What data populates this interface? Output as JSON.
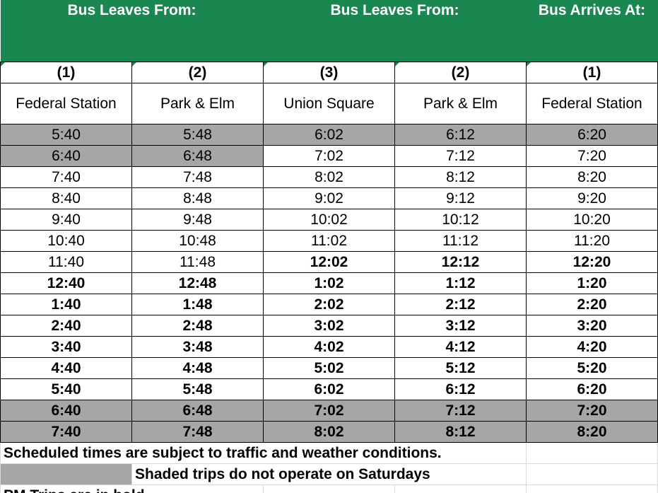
{
  "header": {
    "groups": [
      {
        "label": "Bus Leaves From:",
        "span": 2
      },
      {
        "label": "Bus Leaves From:",
        "span": 2
      },
      {
        "label": "Bus Arrives At:",
        "span": 1
      }
    ]
  },
  "stops": [
    {
      "num": "(1)",
      "name": "Federal Station"
    },
    {
      "num": "(2)",
      "name": "Park & Elm"
    },
    {
      "num": "(3)",
      "name": "Union Square"
    },
    {
      "num": "(2)",
      "name": "Park & Elm"
    },
    {
      "num": "(1)",
      "name": "Federal Station"
    }
  ],
  "trips": [
    {
      "times": [
        "5:40",
        "5:48",
        "6:02",
        "6:12",
        "6:20"
      ],
      "pm": [
        false,
        false,
        false,
        false,
        false
      ],
      "shaded_cells": 5
    },
    {
      "times": [
        "6:40",
        "6:48",
        "7:02",
        "7:12",
        "7:20"
      ],
      "pm": [
        false,
        false,
        false,
        false,
        false
      ],
      "shaded_cells": 2
    },
    {
      "times": [
        "7:40",
        "7:48",
        "8:02",
        "8:12",
        "8:20"
      ],
      "pm": [
        false,
        false,
        false,
        false,
        false
      ],
      "shaded_cells": 0
    },
    {
      "times": [
        "8:40",
        "8:48",
        "9:02",
        "9:12",
        "9:20"
      ],
      "pm": [
        false,
        false,
        false,
        false,
        false
      ],
      "shaded_cells": 0
    },
    {
      "times": [
        "9:40",
        "9:48",
        "10:02",
        "10:12",
        "10:20"
      ],
      "pm": [
        false,
        false,
        false,
        false,
        false
      ],
      "shaded_cells": 0
    },
    {
      "times": [
        "10:40",
        "10:48",
        "11:02",
        "11:12",
        "11:20"
      ],
      "pm": [
        false,
        false,
        false,
        false,
        false
      ],
      "shaded_cells": 0
    },
    {
      "times": [
        "11:40",
        "11:48",
        "12:02",
        "12:12",
        "12:20"
      ],
      "pm": [
        false,
        false,
        true,
        true,
        true
      ],
      "shaded_cells": 0
    },
    {
      "times": [
        "12:40",
        "12:48",
        "1:02",
        "1:12",
        "1:20"
      ],
      "pm": [
        true,
        true,
        true,
        true,
        true
      ],
      "shaded_cells": 0
    },
    {
      "times": [
        "1:40",
        "1:48",
        "2:02",
        "2:12",
        "2:20"
      ],
      "pm": [
        true,
        true,
        true,
        true,
        true
      ],
      "shaded_cells": 0
    },
    {
      "times": [
        "2:40",
        "2:48",
        "3:02",
        "3:12",
        "3:20"
      ],
      "pm": [
        true,
        true,
        true,
        true,
        true
      ],
      "shaded_cells": 0
    },
    {
      "times": [
        "3:40",
        "3:48",
        "4:02",
        "4:12",
        "4:20"
      ],
      "pm": [
        true,
        true,
        true,
        true,
        true
      ],
      "shaded_cells": 0
    },
    {
      "times": [
        "4:40",
        "4:48",
        "5:02",
        "5:12",
        "5:20"
      ],
      "pm": [
        true,
        true,
        true,
        true,
        true
      ],
      "shaded_cells": 0
    },
    {
      "times": [
        "5:40",
        "5:48",
        "6:02",
        "6:12",
        "6:20"
      ],
      "pm": [
        true,
        true,
        true,
        true,
        true
      ],
      "shaded_cells": 0
    },
    {
      "times": [
        "6:40",
        "6:48",
        "7:02",
        "7:12",
        "7:20"
      ],
      "pm": [
        true,
        true,
        true,
        true,
        true
      ],
      "shaded_cells": 5
    },
    {
      "times": [
        "7:40",
        "7:48",
        "8:02",
        "8:12",
        "8:20"
      ],
      "pm": [
        true,
        true,
        true,
        true,
        true
      ],
      "shaded_cells": 5
    }
  ],
  "notes": {
    "traffic": "Scheduled times are subject to traffic and weather conditions.",
    "shaded": "Shaded trips do not operate on Saturdays",
    "bold": "PM Trips are in bold"
  },
  "colors": {
    "header": "#1a8751",
    "shade": "#a6a6a6"
  }
}
